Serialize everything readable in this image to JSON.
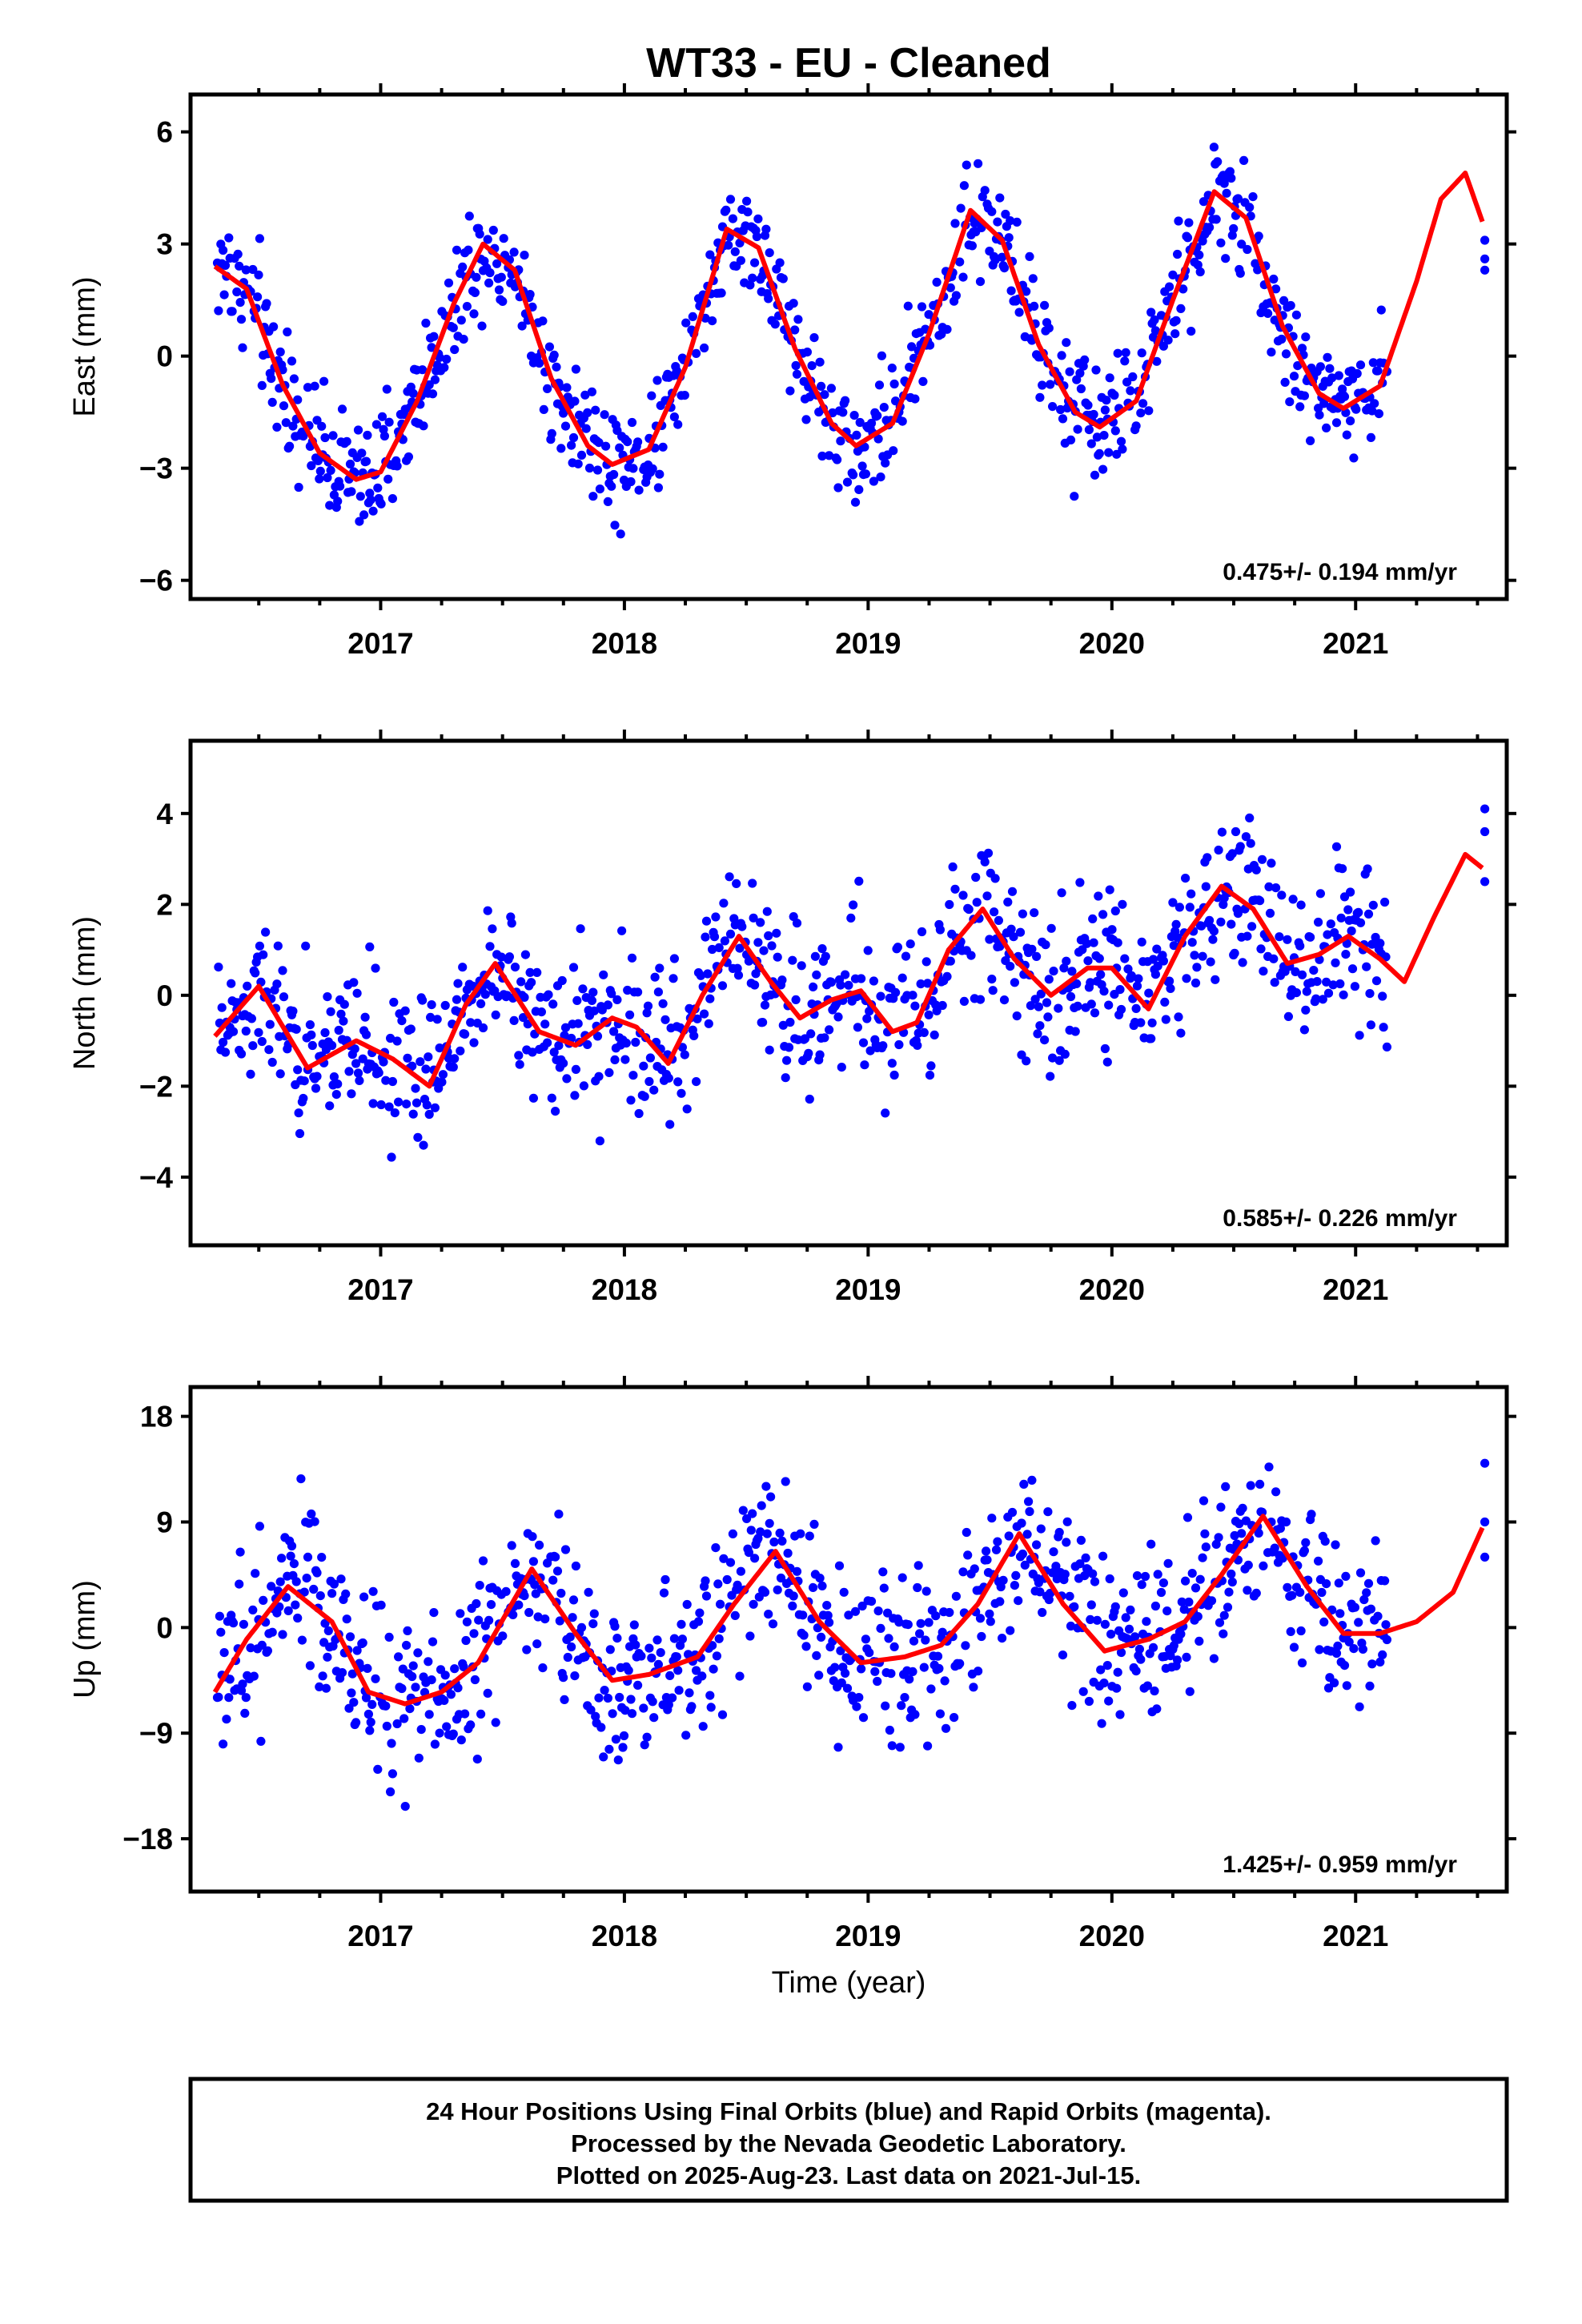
{
  "figure": {
    "title": "WT33  - EU - Cleaned",
    "xlabel": "Time (year)",
    "footer": [
      "24 Hour Positions Using Final Orbits (blue) and Rapid Orbits (magenta).",
      "Processed by the Nevada Geodetic Laboratory.",
      "Plotted on 2025-Aug-23. Last data on 2021-Jul-15."
    ],
    "colors": {
      "final_orbits": "#0000ff",
      "rapid_orbits": "#ff00ff",
      "model": "#ff0000",
      "frame": "#000000"
    }
  },
  "chart_data": [
    {
      "type": "scatter",
      "panel": "east",
      "ylabel": "East (mm)",
      "xlim": [
        2016.22,
        2021.62
      ],
      "ylim": [
        -6.5,
        7.0
      ],
      "xticks": [
        2017,
        2018,
        2019,
        2020,
        2021
      ],
      "xtick_labels": [
        "2017",
        "2018",
        "2019",
        "2020",
        "2021"
      ],
      "yticks": [
        -6,
        -3,
        0,
        3,
        6
      ],
      "ytick_labels": [
        "−6",
        "−3",
        "0",
        "3",
        "6"
      ],
      "rate_label": "0.475+/- 0.194 mm/yr",
      "model_curve": {
        "name": "model",
        "x": [
          2016.32,
          2016.45,
          2016.6,
          2016.75,
          2016.9,
          2017.0,
          2017.15,
          2017.3,
          2017.42,
          2017.55,
          2017.7,
          2017.85,
          2017.95,
          2018.1,
          2018.25,
          2018.42,
          2018.55,
          2018.7,
          2018.85,
          2018.95,
          2019.1,
          2019.25,
          2019.42,
          2019.55,
          2019.7,
          2019.85,
          2019.95,
          2020.1,
          2020.25,
          2020.42,
          2020.55,
          2020.7,
          2020.85,
          2020.95,
          2021.1,
          2021.25,
          2021.35,
          2021.45,
          2021.52
        ],
        "y": [
          2.4,
          1.8,
          -0.8,
          -2.6,
          -3.3,
          -3.1,
          -1.2,
          1.4,
          3.0,
          2.3,
          -0.6,
          -2.4,
          -2.9,
          -2.5,
          -0.3,
          3.4,
          2.9,
          0.2,
          -1.8,
          -2.4,
          -1.8,
          0.6,
          3.9,
          3.1,
          0.3,
          -1.5,
          -1.9,
          -1.2,
          1.5,
          4.4,
          3.7,
          0.8,
          -1.0,
          -1.4,
          -0.8,
          2.0,
          4.2,
          4.9,
          3.6
        ]
      },
      "series": [
        {
          "name": "final orbits",
          "amp": 2.7,
          "sigma": 0.85,
          "rate": 0.475,
          "rapid_tail": [
            3.1,
            2.6,
            2.3
          ]
        }
      ]
    },
    {
      "type": "scatter",
      "panel": "north",
      "ylabel": "North (mm)",
      "xlim": [
        2016.22,
        2021.62
      ],
      "ylim": [
        -5.5,
        5.6
      ],
      "xticks": [
        2017,
        2018,
        2019,
        2020,
        2021
      ],
      "xtick_labels": [
        "2017",
        "2018",
        "2019",
        "2020",
        "2021"
      ],
      "yticks": [
        -4,
        -2,
        0,
        2,
        4
      ],
      "ytick_labels": [
        "−4",
        "−2",
        "0",
        "2",
        "4"
      ],
      "rate_label": "0.585+/- 0.226 mm/yr",
      "model_curve": {
        "name": "model",
        "x": [
          2016.32,
          2016.5,
          2016.7,
          2016.9,
          2017.05,
          2017.2,
          2017.35,
          2017.47,
          2017.65,
          2017.8,
          2017.95,
          2018.05,
          2018.18,
          2018.32,
          2018.47,
          2018.6,
          2018.72,
          2018.85,
          2018.97,
          2019.1,
          2019.2,
          2019.33,
          2019.47,
          2019.6,
          2019.75,
          2019.9,
          2020.0,
          2020.15,
          2020.3,
          2020.45,
          2020.58,
          2020.72,
          2020.85,
          2020.97,
          2021.1,
          2021.2,
          2021.32,
          2021.45,
          2021.52
        ],
        "y": [
          -0.9,
          0.2,
          -1.6,
          -1.0,
          -1.4,
          -2.0,
          -0.2,
          0.7,
          -0.8,
          -1.1,
          -0.5,
          -0.7,
          -1.5,
          0.0,
          1.3,
          0.3,
          -0.5,
          -0.1,
          0.1,
          -0.8,
          -0.6,
          1.0,
          1.9,
          0.8,
          0.0,
          0.6,
          0.6,
          -0.3,
          1.3,
          2.4,
          1.9,
          0.7,
          0.9,
          1.3,
          0.8,
          0.3,
          1.7,
          3.1,
          2.8
        ]
      },
      "series": [
        {
          "name": "final orbits",
          "amp": 0.9,
          "sigma": 0.95,
          "rate": 0.585,
          "rapid_tail": [
            4.1,
            3.6,
            2.5
          ]
        }
      ]
    },
    {
      "type": "scatter",
      "panel": "up",
      "ylabel": "Up (mm)",
      "xlim": [
        2016.22,
        2021.62
      ],
      "ylim": [
        -22.5,
        20.5
      ],
      "xticks": [
        2017,
        2018,
        2019,
        2020,
        2021
      ],
      "xtick_labels": [
        "2017",
        "2018",
        "2019",
        "2020",
        "2021"
      ],
      "yticks": [
        -18,
        -9,
        0,
        9,
        18
      ],
      "ytick_labels": [
        "−18",
        "−9",
        "0",
        "9",
        "18"
      ],
      "rate_label": "1.425+/- 0.959 mm/yr",
      "model_curve": {
        "name": "model",
        "x": [
          2016.32,
          2016.45,
          2016.62,
          2016.8,
          2016.95,
          2017.1,
          2017.25,
          2017.4,
          2017.62,
          2017.8,
          2017.95,
          2018.1,
          2018.3,
          2018.45,
          2018.62,
          2018.8,
          2018.97,
          2019.15,
          2019.3,
          2019.45,
          2019.62,
          2019.8,
          2019.97,
          2020.15,
          2020.3,
          2020.45,
          2020.62,
          2020.8,
          2020.95,
          2021.1,
          2021.25,
          2021.4,
          2021.52
        ],
        "y": [
          -5.5,
          -1.0,
          3.5,
          0.5,
          -5.5,
          -6.5,
          -5.5,
          -3.0,
          5.0,
          -0.5,
          -4.5,
          -4.0,
          -2.5,
          2.0,
          6.5,
          0.5,
          -3.0,
          -2.5,
          -1.5,
          2.0,
          8.0,
          2.0,
          -2.0,
          -1.0,
          0.5,
          4.5,
          9.5,
          3.5,
          -0.5,
          -0.5,
          0.5,
          3.0,
          8.5
        ]
      },
      "series": [
        {
          "name": "final orbits",
          "amp": 5.2,
          "sigma": 3.9,
          "rate": 1.425,
          "rapid_tail": [
            14.0,
            9.0,
            6.0
          ]
        }
      ]
    }
  ]
}
